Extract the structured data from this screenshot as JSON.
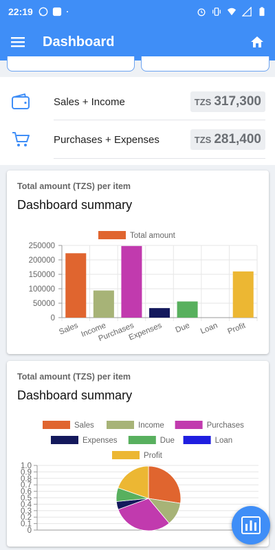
{
  "status_bar": {
    "time": "22:19"
  },
  "app_bar": {
    "title": "Dashboard"
  },
  "summary": [
    {
      "label": "Sales + Income",
      "currency": "TZS",
      "amount": "317,300"
    },
    {
      "label": "Purchases + Expenses",
      "currency": "TZS",
      "amount": "281,400"
    }
  ],
  "bar_card": {
    "subtitle": "Total amount (TZS) per item",
    "title": "Dashboard summary"
  },
  "pie_card": {
    "subtitle": "Total amount (TZS) per item",
    "title": "Dashboard summary"
  },
  "chart_data": [
    {
      "type": "bar",
      "categories": [
        "Sales",
        "Income",
        "Purchases",
        "Expenses",
        "Due",
        "Loan",
        "Profit"
      ],
      "series": [
        {
          "name": "Total amount",
          "values": [
            223000,
            94000,
            248000,
            33000,
            56000,
            0,
            160000
          ]
        }
      ],
      "colors": [
        "#e0652f",
        "#a7b377",
        "#c13aae",
        "#14195c",
        "#58b05e",
        "#1f1ee0",
        "#ecb733"
      ],
      "legend_color": "#e0652f",
      "ylim": [
        0,
        250000
      ],
      "yticks": [
        "0",
        "50000",
        "100000",
        "150000",
        "200000",
        "250000"
      ],
      "grid": true,
      "legend": "top"
    },
    {
      "type": "pie",
      "categories": [
        "Sales",
        "Income",
        "Purchases",
        "Expenses",
        "Due",
        "Loan",
        "Profit"
      ],
      "values": [
        223000,
        94000,
        248000,
        33000,
        56000,
        0,
        160000
      ],
      "colors": [
        "#e0652f",
        "#a7b377",
        "#c13aae",
        "#14195c",
        "#58b05e",
        "#1f1ee0",
        "#ecb733"
      ],
      "yticks": [
        "0",
        "0.1",
        "0.2",
        "0.3",
        "0.4",
        "0.5",
        "0.6",
        "0.7",
        "0.8",
        "0.9",
        "1.0"
      ],
      "legend": "top"
    }
  ]
}
